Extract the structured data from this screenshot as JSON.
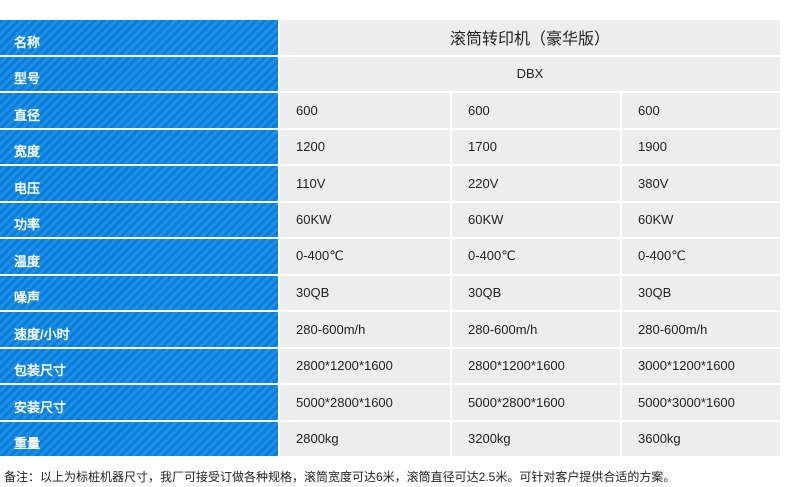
{
  "table": {
    "rows": [
      {
        "label": "名称",
        "cells": [
          "滚筒转印机（豪华版）"
        ]
      },
      {
        "label": "型号",
        "cells": [
          "DBX"
        ]
      },
      {
        "label": "直径",
        "cells": [
          "600",
          "600",
          "600"
        ]
      },
      {
        "label": "宽度",
        "cells": [
          "1200",
          "1700",
          "1900"
        ]
      },
      {
        "label": "电压",
        "cells": [
          "110V",
          "220V",
          "380V"
        ]
      },
      {
        "label": "功率",
        "cells": [
          "60KW",
          "60KW",
          "60KW"
        ]
      },
      {
        "label": "温度",
        "cells": [
          "0-400℃",
          "0-400℃",
          "0-400℃"
        ]
      },
      {
        "label": "噪声",
        "cells": [
          "30QB",
          "30QB",
          "30QB"
        ]
      },
      {
        "label": "速度/小时",
        "cells": [
          "280-600m/h",
          "280-600m/h",
          "280-600m/h"
        ]
      },
      {
        "label": "包装尺寸",
        "cells": [
          "2800*1200*1600",
          "2800*1200*1600",
          "3000*1200*1600"
        ]
      },
      {
        "label": "安装尺寸",
        "cells": [
          "5000*2800*1600",
          "5000*2800*1600",
          "5000*3000*1600"
        ]
      },
      {
        "label": "重量",
        "cells": [
          "2800kg",
          "3200kg",
          "3600kg"
        ]
      }
    ]
  },
  "note": "备注：以上为标桩机器尺寸，我厂可接受订做各种规格，滚筒宽度可达6米，滚筒直径可达2.5米。可针对客户提供合适的方案。"
}
